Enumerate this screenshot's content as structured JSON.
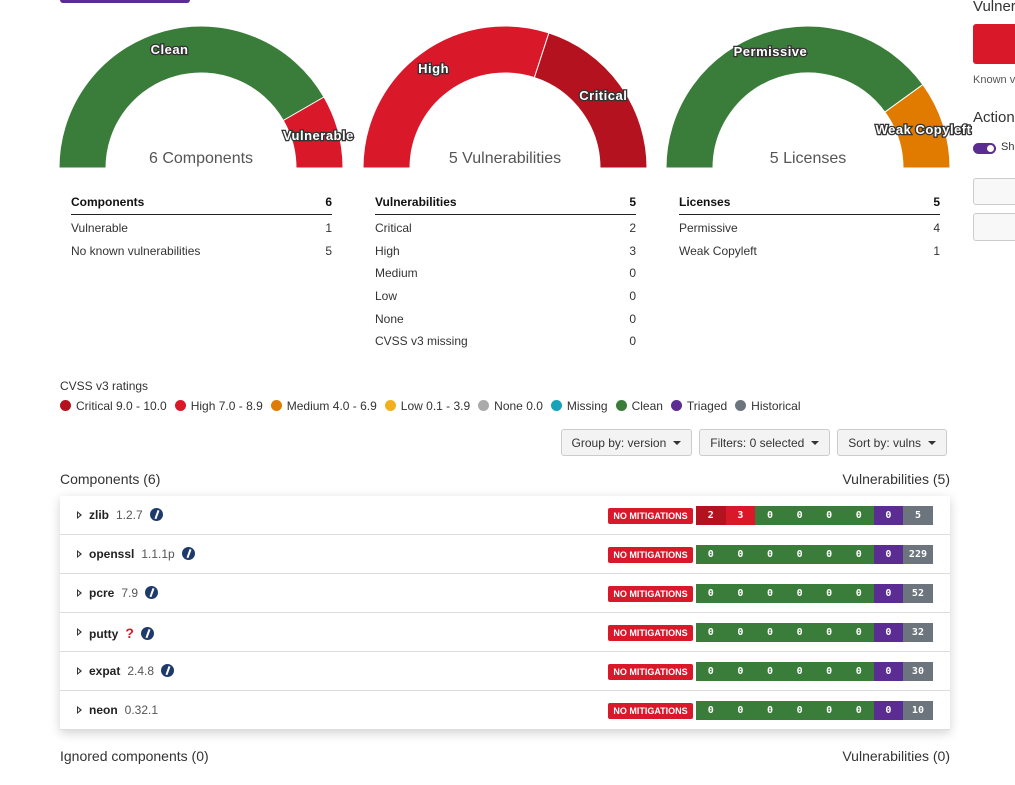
{
  "gauges": [
    {
      "center_label": "6 Components",
      "segments": [
        {
          "label": "Clean",
          "value": 5,
          "color": "#3a7d3a"
        },
        {
          "label": "Vulnerable",
          "value": 1,
          "color": "#d9182a"
        }
      ]
    },
    {
      "center_label": "5 Vulnerabilities",
      "segments": [
        {
          "label": "High",
          "value": 3,
          "color": "#d9182a"
        },
        {
          "label": "Critical",
          "value": 2,
          "color": "#b5121f"
        }
      ]
    },
    {
      "center_label": "5 Licenses",
      "segments": [
        {
          "label": "Permissive",
          "value": 4,
          "color": "#3a7d3a"
        },
        {
          "label": "Weak Copyleft",
          "value": 1,
          "color": "#e07b00"
        }
      ]
    }
  ],
  "tables": [
    {
      "header": [
        "Components",
        "6"
      ],
      "rows": [
        [
          "Vulnerable",
          "1"
        ],
        [
          "No known vulnerabilities",
          "5"
        ]
      ]
    },
    {
      "header": [
        "Vulnerabilities",
        "5"
      ],
      "rows": [
        [
          "Critical",
          "2"
        ],
        [
          "High",
          "3"
        ],
        [
          "Medium",
          "0"
        ],
        [
          "Low",
          "0"
        ],
        [
          "None",
          "0"
        ],
        [
          "CVSS v3 missing",
          "0"
        ]
      ]
    },
    {
      "header": [
        "Licenses",
        "5"
      ],
      "rows": [
        [
          "Permissive",
          "4"
        ],
        [
          "Weak Copyleft",
          "1"
        ]
      ]
    }
  ],
  "legend": {
    "title": "CVSS v3 ratings",
    "items": [
      {
        "label": "Critical 9.0 - 10.0",
        "color": "#b5121f"
      },
      {
        "label": "High 7.0 - 8.9",
        "color": "#d9182a"
      },
      {
        "label": "Medium 4.0 - 6.9",
        "color": "#de7b04"
      },
      {
        "label": "Low 0.1 - 3.9",
        "color": "#f2b01e"
      },
      {
        "label": "None 0.0",
        "color": "#aaaaaa"
      },
      {
        "label": "Missing",
        "color": "#17a2b8"
      },
      {
        "label": "Clean",
        "color": "#3a7d3a"
      },
      {
        "label": "Triaged",
        "color": "#5b2c91"
      },
      {
        "label": "Historical",
        "color": "#6c757d"
      }
    ]
  },
  "controls": [
    "Group by: version",
    "Filters: 0 selected",
    "Sort by: vulns"
  ],
  "components": {
    "title": "Components (6)",
    "vulns_title": "Vulnerabilities (5)",
    "rows": [
      {
        "name": "zlib",
        "version": "1.2.7",
        "info": true,
        "mitigation": "NO MITIGATIONS",
        "counts": [
          "2",
          "3",
          "0",
          "0",
          "0",
          "0",
          "0",
          "5"
        ]
      },
      {
        "name": "openssl",
        "version": "1.1.1p",
        "info": true,
        "mitigation": "NO MITIGATIONS",
        "counts": [
          "0",
          "0",
          "0",
          "0",
          "0",
          "0",
          "0",
          "229"
        ]
      },
      {
        "name": "pcre",
        "version": "7.9",
        "info": true,
        "mitigation": "NO MITIGATIONS",
        "counts": [
          "0",
          "0",
          "0",
          "0",
          "0",
          "0",
          "0",
          "52"
        ]
      },
      {
        "name": "putty",
        "version": "?",
        "version_unknown": true,
        "info": true,
        "mitigation": "NO MITIGATIONS",
        "counts": [
          "0",
          "0",
          "0",
          "0",
          "0",
          "0",
          "0",
          "32"
        ]
      },
      {
        "name": "expat",
        "version": "2.4.8",
        "info": true,
        "mitigation": "NO MITIGATIONS",
        "counts": [
          "0",
          "0",
          "0",
          "0",
          "0",
          "0",
          "0",
          "30"
        ]
      },
      {
        "name": "neon",
        "version": "0.32.1",
        "info": false,
        "mitigation": "NO MITIGATIONS",
        "counts": [
          "0",
          "0",
          "0",
          "0",
          "0",
          "0",
          "0",
          "10"
        ]
      }
    ]
  },
  "ignored": {
    "title": "Ignored components (0)",
    "vulns_title": "Vulnerabilities (0)"
  },
  "sidebar": {
    "title": "Vulner",
    "known": "Known v",
    "actions": "Action",
    "toggle": "Sh"
  }
}
